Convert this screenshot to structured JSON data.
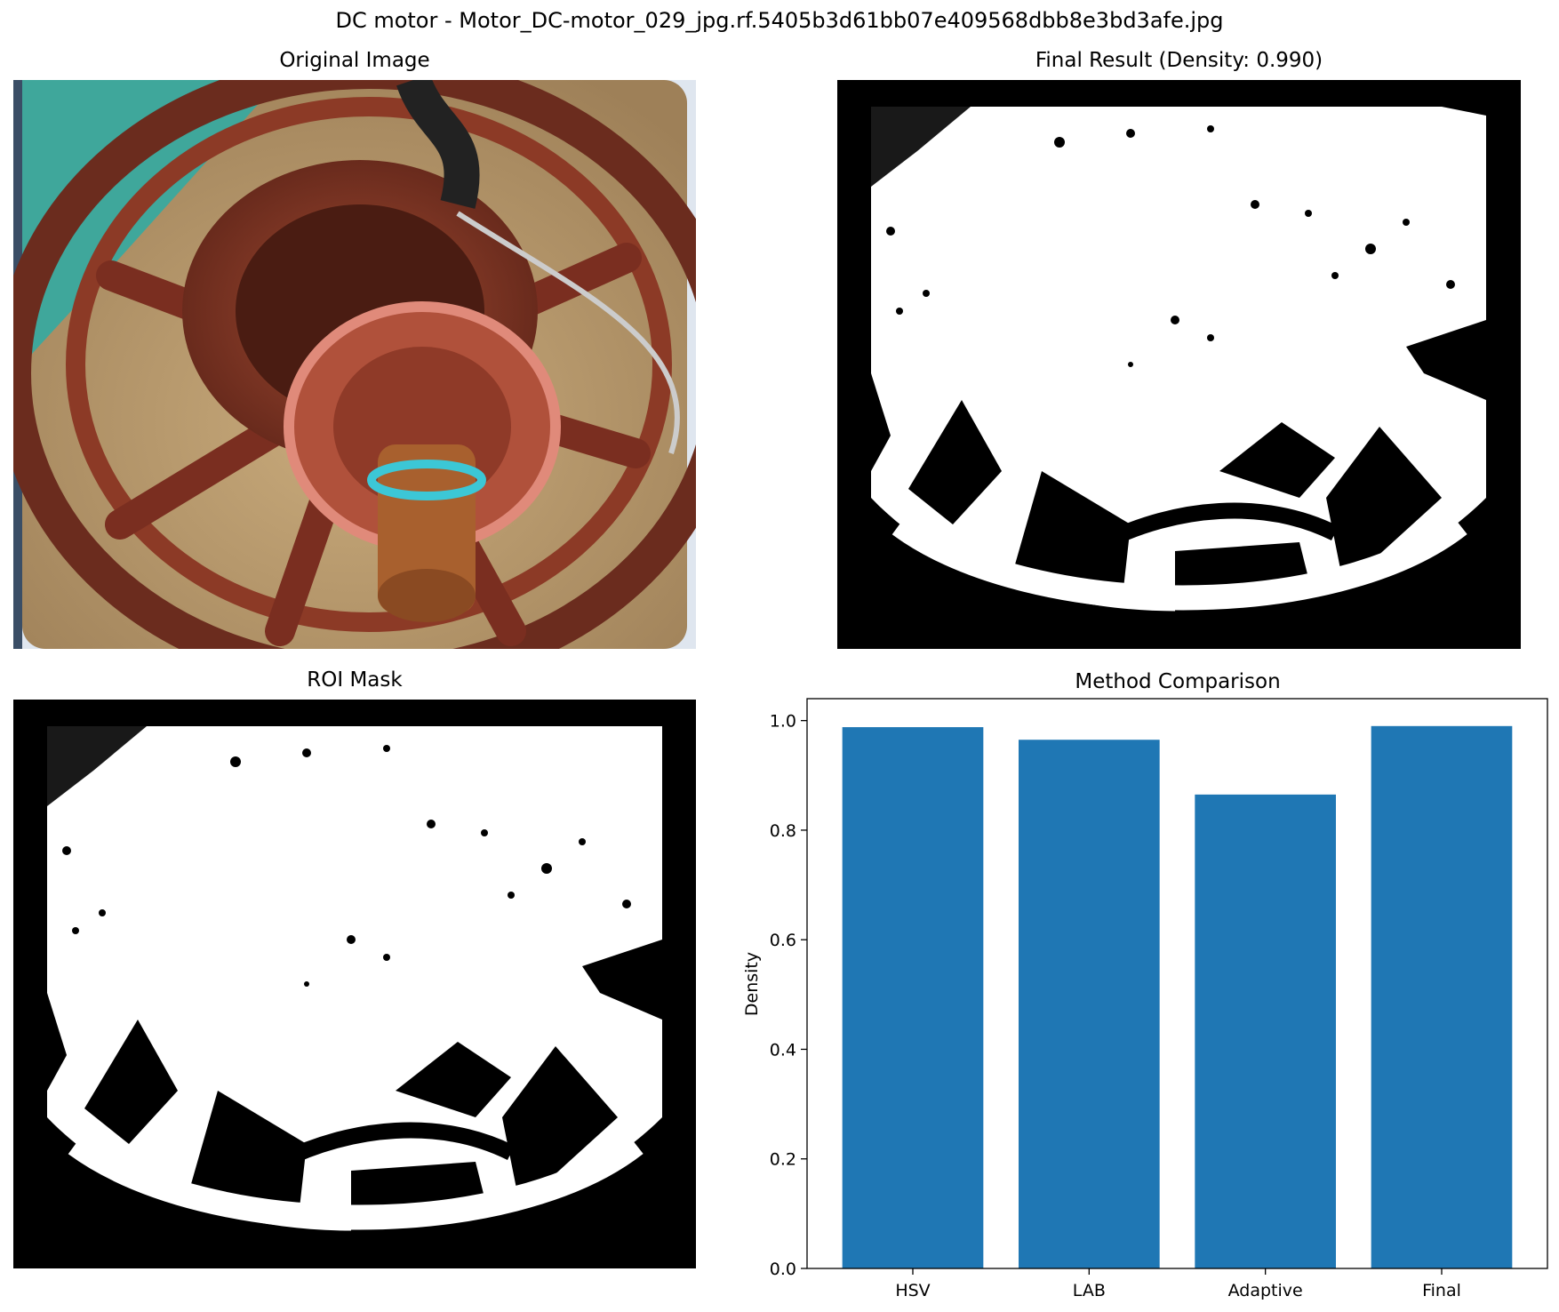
{
  "figure": {
    "suptitle": "DC motor - Motor_DC-motor_029_jpg.rf.5405b3d61bb07e409568dbb8e3bd3afe.jpg"
  },
  "panels": {
    "original": {
      "title": "Original Image"
    },
    "final": {
      "title": "Final Result (Density: 0.990)"
    },
    "roi": {
      "title": "ROI Mask"
    },
    "comparison": {
      "title": "Method Comparison"
    }
  },
  "colors": {
    "bar": "#1f77b4",
    "mask_fg": "#ffffff",
    "mask_bg": "#000000",
    "motor_rust": "#7a3424",
    "sand": "#b89a6e",
    "teal": "#3fa79b"
  },
  "chart_data": {
    "type": "bar",
    "title": "Method Comparison",
    "categories": [
      "HSV",
      "LAB",
      "Adaptive",
      "Final"
    ],
    "values": [
      0.988,
      0.965,
      0.865,
      0.99
    ],
    "xlabel": "",
    "ylabel": "Density",
    "ylim": [
      0,
      1.04
    ],
    "yticks": [
      "0.0",
      "0.2",
      "0.4",
      "0.6",
      "0.8",
      "1.0"
    ],
    "grid": false,
    "legend": "none"
  }
}
